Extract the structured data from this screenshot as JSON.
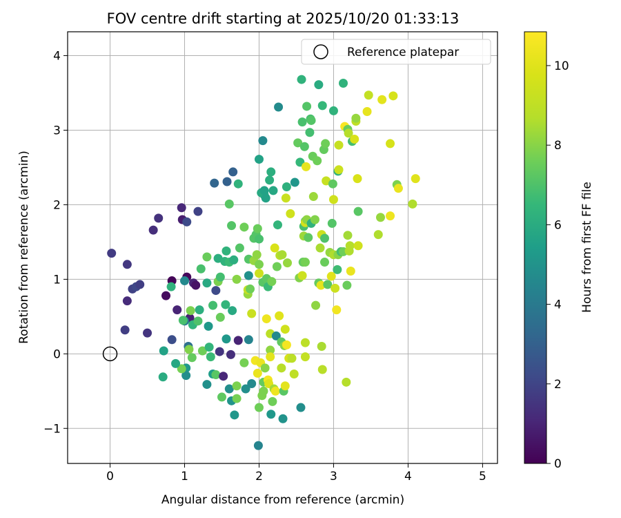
{
  "chart_data": {
    "type": "scatter",
    "title": "FOV centre drift starting at 2025/10/20 01:33:13",
    "xlabel": "Angular distance from reference (arcmin)",
    "ylabel": "Rotation from reference (arcmin)",
    "xlim": [
      -0.57,
      5.2
    ],
    "ylim": [
      -1.47,
      4.32
    ],
    "xticks": [
      0,
      1,
      2,
      3,
      4,
      5
    ],
    "yticks": [
      -1,
      0,
      1,
      2,
      3,
      4
    ],
    "xtick_labels": [
      "0",
      "1",
      "2",
      "3",
      "4",
      "5"
    ],
    "ytick_labels": [
      "−1",
      "0",
      "1",
      "2",
      "3",
      "4"
    ],
    "grid": true,
    "legend": {
      "position": "top-right",
      "label": "Reference platepar"
    },
    "reference_point": {
      "x": 0,
      "y": 0
    },
    "colorbar": {
      "label": "Hours from first FF file",
      "colormap": "viridis",
      "range": [
        0,
        10.85
      ],
      "ticks": [
        0,
        2,
        4,
        6,
        8,
        10
      ],
      "tick_labels": [
        "0",
        "2",
        "4",
        "6",
        "8",
        "10"
      ]
    },
    "points": [
      {
        "x": 0.02,
        "y": 1.35,
        "h": 1.7
      },
      {
        "x": 0.23,
        "y": 1.2,
        "h": 1.6
      },
      {
        "x": 0.2,
        "y": 0.32,
        "h": 1.8
      },
      {
        "x": 0.23,
        "y": 0.71,
        "h": 1.2
      },
      {
        "x": 0.3,
        "y": 0.87,
        "h": 1.9
      },
      {
        "x": 0.35,
        "y": 0.9,
        "h": 2.1
      },
      {
        "x": 0.4,
        "y": 0.93,
        "h": 1.8
      },
      {
        "x": 0.5,
        "y": 0.28,
        "h": 1.5
      },
      {
        "x": 0.58,
        "y": 1.66,
        "h": 1.3
      },
      {
        "x": 0.65,
        "y": 1.82,
        "h": 1.4
      },
      {
        "x": 0.75,
        "y": 0.78,
        "h": 0.3
      },
      {
        "x": 0.83,
        "y": 0.98,
        "h": 0.1
      },
      {
        "x": 0.83,
        "y": 0.19,
        "h": 2.3
      },
      {
        "x": 0.9,
        "y": 0.59,
        "h": 1.0
      },
      {
        "x": 0.96,
        "y": 1.96,
        "h": 1.1
      },
      {
        "x": 0.97,
        "y": 1.8,
        "h": 0.8
      },
      {
        "x": 1.03,
        "y": 1.77,
        "h": 2.2
      },
      {
        "x": 1.03,
        "y": 1.03,
        "h": 0.2
      },
      {
        "x": 1.07,
        "y": 0.48,
        "h": 0.9
      },
      {
        "x": 1.12,
        "y": 0.95,
        "h": 1.0
      },
      {
        "x": 1.15,
        "y": 0.92,
        "h": 0.5
      },
      {
        "x": 1.18,
        "y": 1.91,
        "h": 1.9
      },
      {
        "x": 1.0,
        "y": 0.98,
        "h": 4.6
      },
      {
        "x": 1.0,
        "y": 0.44,
        "h": 4.0
      },
      {
        "x": 1.05,
        "y": 0.1,
        "h": 3.6
      },
      {
        "x": 1.02,
        "y": -0.19,
        "h": 5.2
      },
      {
        "x": 1.02,
        "y": -0.29,
        "h": 4.8
      },
      {
        "x": 0.96,
        "y": -0.2,
        "h": 7.7
      },
      {
        "x": 0.88,
        "y": -0.13,
        "h": 5.8
      },
      {
        "x": 0.72,
        "y": 0.04,
        "h": 5.6
      },
      {
        "x": 0.71,
        "y": -0.31,
        "h": 6.0
      },
      {
        "x": 0.82,
        "y": 0.9,
        "h": 6.3
      },
      {
        "x": 0.98,
        "y": 0.45,
        "h": 6.9
      },
      {
        "x": 1.08,
        "y": 0.58,
        "h": 7.8
      },
      {
        "x": 1.11,
        "y": 0.39,
        "h": 6.4
      },
      {
        "x": 1.06,
        "y": 0.06,
        "h": 7.9
      },
      {
        "x": 1.1,
        "y": -0.05,
        "h": 7.4
      },
      {
        "x": 1.18,
        "y": 0.44,
        "h": 7.0
      },
      {
        "x": 1.2,
        "y": 0.59,
        "h": 6.1
      },
      {
        "x": 1.24,
        "y": 0.04,
        "h": 7.6
      },
      {
        "x": 1.22,
        "y": 1.14,
        "h": 6.9
      },
      {
        "x": 1.3,
        "y": 1.3,
        "h": 7.5
      },
      {
        "x": 1.3,
        "y": 0.95,
        "h": 5.9
      },
      {
        "x": 1.32,
        "y": 0.37,
        "h": 5.2
      },
      {
        "x": 1.3,
        "y": -0.41,
        "h": 4.9
      },
      {
        "x": 1.33,
        "y": 0.09,
        "h": 6.4
      },
      {
        "x": 1.35,
        "y": -0.04,
        "h": 6.6
      },
      {
        "x": 1.38,
        "y": -0.27,
        "h": 5.4
      },
      {
        "x": 1.38,
        "y": 0.65,
        "h": 6.8
      },
      {
        "x": 1.42,
        "y": -0.28,
        "h": 7.2
      },
      {
        "x": 1.4,
        "y": 2.29,
        "h": 3.2
      },
      {
        "x": 1.42,
        "y": 0.85,
        "h": 2.2
      },
      {
        "x": 1.45,
        "y": 0.97,
        "h": 7.8
      },
      {
        "x": 1.45,
        "y": 1.28,
        "h": 6.1
      },
      {
        "x": 1.47,
        "y": 0.03,
        "h": 1.5
      },
      {
        "x": 1.48,
        "y": 0.49,
        "h": 7.5
      },
      {
        "x": 1.48,
        "y": 1.03,
        "h": 6.8
      },
      {
        "x": 1.5,
        "y": -0.58,
        "h": 7.3
      },
      {
        "x": 1.52,
        "y": -0.3,
        "h": 1.1
      },
      {
        "x": 1.54,
        "y": 1.24,
        "h": 6.3
      },
      {
        "x": 1.55,
        "y": 0.66,
        "h": 6.4
      },
      {
        "x": 1.56,
        "y": 1.38,
        "h": 6.3
      },
      {
        "x": 1.56,
        "y": 0.2,
        "h": 5.2
      },
      {
        "x": 1.57,
        "y": 2.31,
        "h": 3.0
      },
      {
        "x": 1.6,
        "y": -0.47,
        "h": 4.8
      },
      {
        "x": 1.6,
        "y": 1.23,
        "h": 6.6
      },
      {
        "x": 1.6,
        "y": 2.01,
        "h": 7.2
      },
      {
        "x": 1.62,
        "y": -0.01,
        "h": 1.3
      },
      {
        "x": 1.63,
        "y": -0.63,
        "h": 5.0
      },
      {
        "x": 1.63,
        "y": 1.72,
        "h": 7.1
      },
      {
        "x": 1.64,
        "y": 0.58,
        "h": 5.9
      },
      {
        "x": 1.65,
        "y": 2.44,
        "h": 3.0
      },
      {
        "x": 1.66,
        "y": 1.26,
        "h": 6.1
      },
      {
        "x": 1.67,
        "y": -0.82,
        "h": 5.1
      },
      {
        "x": 1.7,
        "y": -0.43,
        "h": 7.8
      },
      {
        "x": 1.7,
        "y": -0.6,
        "h": 7.7
      },
      {
        "x": 1.7,
        "y": 1.0,
        "h": 8.0
      },
      {
        "x": 1.72,
        "y": 2.28,
        "h": 6.3
      },
      {
        "x": 1.72,
        "y": 0.18,
        "h": 1.0
      },
      {
        "x": 1.74,
        "y": 1.42,
        "h": 7.1
      },
      {
        "x": 1.8,
        "y": -0.12,
        "h": 7.7
      },
      {
        "x": 1.8,
        "y": 1.7,
        "h": 7.6
      },
      {
        "x": 1.82,
        "y": -0.47,
        "h": 4.8
      },
      {
        "x": 1.85,
        "y": 0.8,
        "h": 8.2
      },
      {
        "x": 1.85,
        "y": 0.86,
        "h": 9.1
      },
      {
        "x": 1.86,
        "y": 1.05,
        "h": 4.9
      },
      {
        "x": 1.86,
        "y": 0.19,
        "h": 4.4
      },
      {
        "x": 1.86,
        "y": 1.27,
        "h": 7.1
      },
      {
        "x": 1.88,
        "y": 0.87,
        "h": 7.6
      },
      {
        "x": 1.9,
        "y": -0.4,
        "h": 4.6
      },
      {
        "x": 1.9,
        "y": 0.54,
        "h": 9.3
      },
      {
        "x": 1.93,
        "y": 1.25,
        "h": 8.2
      },
      {
        "x": 1.93,
        "y": 1.55,
        "h": 7.1
      },
      {
        "x": 1.95,
        "y": -0.09,
        "h": 10.5
      },
      {
        "x": 1.96,
        "y": 1.6,
        "h": 7.1
      },
      {
        "x": 1.97,
        "y": 1.33,
        "h": 8.1
      },
      {
        "x": 1.98,
        "y": 1.68,
        "h": 7.5
      },
      {
        "x": 1.98,
        "y": -0.26,
        "h": 10.3
      },
      {
        "x": 1.99,
        "y": -1.23,
        "h": 4.4
      },
      {
        "x": 2.0,
        "y": 1.54,
        "h": 6.9
      },
      {
        "x": 2.0,
        "y": 2.61,
        "h": 5.6
      },
      {
        "x": 2.0,
        "y": 1.2,
        "h": 7.8
      },
      {
        "x": 2.0,
        "y": 1.08,
        "h": 9.4
      },
      {
        "x": 2.0,
        "y": -0.72,
        "h": 7.6
      },
      {
        "x": 2.02,
        "y": -0.12,
        "h": 10.3
      },
      {
        "x": 2.03,
        "y": 2.16,
        "h": 5.9
      },
      {
        "x": 2.04,
        "y": -0.56,
        "h": 7.8
      },
      {
        "x": 2.05,
        "y": 0.96,
        "h": 7.2
      },
      {
        "x": 2.05,
        "y": 2.86,
        "h": 4.6
      },
      {
        "x": 2.06,
        "y": -0.38,
        "h": 7.4
      },
      {
        "x": 2.06,
        "y": -0.5,
        "h": 7.8
      },
      {
        "x": 2.07,
        "y": 2.13,
        "h": 5.9
      },
      {
        "x": 2.07,
        "y": 2.19,
        "h": 5.6
      },
      {
        "x": 2.08,
        "y": -0.19,
        "h": 8.0
      },
      {
        "x": 2.09,
        "y": 2.09,
        "h": 5.6
      },
      {
        "x": 2.1,
        "y": 1.01,
        "h": 7.3
      },
      {
        "x": 2.1,
        "y": 0.47,
        "h": 10.4
      },
      {
        "x": 2.12,
        "y": -0.35,
        "h": 10.6
      },
      {
        "x": 2.12,
        "y": 0.9,
        "h": 6.6
      },
      {
        "x": 2.13,
        "y": -0.4,
        "h": 9.9
      },
      {
        "x": 2.14,
        "y": 2.33,
        "h": 6.1
      },
      {
        "x": 2.15,
        "y": 0.27,
        "h": 8.9
      },
      {
        "x": 2.15,
        "y": 0.05,
        "h": 8.1
      },
      {
        "x": 2.15,
        "y": -0.04,
        "h": 10.1
      },
      {
        "x": 2.16,
        "y": -0.81,
        "h": 5.2
      },
      {
        "x": 2.16,
        "y": 2.44,
        "h": 6.1
      },
      {
        "x": 2.17,
        "y": 0.97,
        "h": 7.7
      },
      {
        "x": 2.18,
        "y": -0.64,
        "h": 7.6
      },
      {
        "x": 2.19,
        "y": 2.19,
        "h": 5.8
      },
      {
        "x": 2.2,
        "y": -0.47,
        "h": 8.4
      },
      {
        "x": 2.21,
        "y": 1.42,
        "h": 9.8
      },
      {
        "x": 2.22,
        "y": -0.5,
        "h": 10.4
      },
      {
        "x": 2.23,
        "y": 0.24,
        "h": 4.6
      },
      {
        "x": 2.24,
        "y": 1.17,
        "h": 7.6
      },
      {
        "x": 2.25,
        "y": 1.73,
        "h": 6.4
      },
      {
        "x": 2.26,
        "y": 3.31,
        "h": 4.7
      },
      {
        "x": 2.27,
        "y": 0.51,
        "h": 10.0
      },
      {
        "x": 2.28,
        "y": 1.32,
        "h": 8.7
      },
      {
        "x": 2.3,
        "y": 0.16,
        "h": 7.3
      },
      {
        "x": 2.3,
        "y": -0.19,
        "h": 8.8
      },
      {
        "x": 2.31,
        "y": 1.33,
        "h": 8.5
      },
      {
        "x": 2.32,
        "y": -0.87,
        "h": 5.0
      },
      {
        "x": 2.33,
        "y": -0.5,
        "h": 7.2
      },
      {
        "x": 2.34,
        "y": 0.11,
        "h": 8.0
      },
      {
        "x": 2.35,
        "y": -0.43,
        "h": 10.1
      },
      {
        "x": 2.35,
        "y": 0.33,
        "h": 9.5
      },
      {
        "x": 2.36,
        "y": 2.09,
        "h": 9.3
      },
      {
        "x": 2.37,
        "y": 2.24,
        "h": 6.2
      },
      {
        "x": 2.37,
        "y": 0.12,
        "h": 10.6
      },
      {
        "x": 2.38,
        "y": 1.22,
        "h": 8.2
      },
      {
        "x": 2.4,
        "y": -0.06,
        "h": 9.7
      },
      {
        "x": 2.42,
        "y": 1.88,
        "h": 9.5
      },
      {
        "x": 2.44,
        "y": -0.06,
        "h": 8.9
      },
      {
        "x": 2.47,
        "y": -0.27,
        "h": 9.0
      },
      {
        "x": 2.48,
        "y": 2.3,
        "h": 5.1
      },
      {
        "x": 2.52,
        "y": 2.83,
        "h": 7.4
      },
      {
        "x": 2.54,
        "y": 1.02,
        "h": 7.9
      },
      {
        "x": 2.55,
        "y": 2.57,
        "h": 6.5
      },
      {
        "x": 2.56,
        "y": -0.72,
        "h": 4.8
      },
      {
        "x": 2.57,
        "y": 3.68,
        "h": 6.3
      },
      {
        "x": 2.58,
        "y": 1.05,
        "h": 9.4
      },
      {
        "x": 2.58,
        "y": 3.11,
        "h": 6.9
      },
      {
        "x": 2.59,
        "y": 1.23,
        "h": 7.4
      },
      {
        "x": 2.6,
        "y": 1.71,
        "h": 6.9
      },
      {
        "x": 2.6,
        "y": 1.58,
        "h": 8.3
      },
      {
        "x": 2.61,
        "y": 2.78,
        "h": 7.1
      },
      {
        "x": 2.62,
        "y": 1.78,
        "h": 7.2
      },
      {
        "x": 2.62,
        "y": 1.23,
        "h": 7.7
      },
      {
        "x": 2.62,
        "y": 1.76,
        "h": 9.6
      },
      {
        "x": 2.62,
        "y": 0.15,
        "h": 8.9
      },
      {
        "x": 2.62,
        "y": -0.04,
        "h": 9.1
      },
      {
        "x": 2.63,
        "y": 2.51,
        "h": 10.2
      },
      {
        "x": 2.64,
        "y": 1.8,
        "h": 8.1
      },
      {
        "x": 2.64,
        "y": 3.32,
        "h": 7.1
      },
      {
        "x": 2.66,
        "y": 1.56,
        "h": 7.3
      },
      {
        "x": 2.68,
        "y": 2.97,
        "h": 6.8
      },
      {
        "x": 2.69,
        "y": 3.15,
        "h": 6.9
      },
      {
        "x": 2.7,
        "y": 3.13,
        "h": 7.1
      },
      {
        "x": 2.7,
        "y": 1.75,
        "h": 6.3
      },
      {
        "x": 2.72,
        "y": 2.65,
        "h": 7.5
      },
      {
        "x": 2.73,
        "y": 2.11,
        "h": 8.3
      },
      {
        "x": 2.75,
        "y": 1.8,
        "h": 7.9
      },
      {
        "x": 2.76,
        "y": 0.65,
        "h": 8.1
      },
      {
        "x": 2.78,
        "y": 2.59,
        "h": 7.6
      },
      {
        "x": 2.8,
        "y": 3.61,
        "h": 6.0
      },
      {
        "x": 2.8,
        "y": 0.95,
        "h": 7.4
      },
      {
        "x": 2.82,
        "y": 1.42,
        "h": 8.5
      },
      {
        "x": 2.83,
        "y": 0.92,
        "h": 10.1
      },
      {
        "x": 2.84,
        "y": 1.6,
        "h": 9.4
      },
      {
        "x": 2.84,
        "y": 0.1,
        "h": 8.5
      },
      {
        "x": 2.85,
        "y": -0.21,
        "h": 8.8
      },
      {
        "x": 2.85,
        "y": 3.33,
        "h": 6.5
      },
      {
        "x": 2.87,
        "y": 2.74,
        "h": 7.4
      },
      {
        "x": 2.88,
        "y": 1.55,
        "h": 7.0
      },
      {
        "x": 2.88,
        "y": 1.23,
        "h": 7.5
      },
      {
        "x": 2.89,
        "y": 2.82,
        "h": 7.6
      },
      {
        "x": 2.9,
        "y": 2.32,
        "h": 9.2
      },
      {
        "x": 2.92,
        "y": 0.93,
        "h": 7.2
      },
      {
        "x": 2.95,
        "y": 1.36,
        "h": 8.2
      },
      {
        "x": 2.97,
        "y": 1.04,
        "h": 10.0
      },
      {
        "x": 2.98,
        "y": 1.75,
        "h": 7.1
      },
      {
        "x": 2.99,
        "y": 2.28,
        "h": 7.3
      },
      {
        "x": 3.0,
        "y": 1.33,
        "h": 8.6
      },
      {
        "x": 3.0,
        "y": 3.26,
        "h": 6.3
      },
      {
        "x": 3.0,
        "y": 2.07,
        "h": 9.5
      },
      {
        "x": 3.02,
        "y": 0.88,
        "h": 9.4
      },
      {
        "x": 3.04,
        "y": 0.59,
        "h": 10.5
      },
      {
        "x": 3.05,
        "y": 1.13,
        "h": 6.7
      },
      {
        "x": 3.06,
        "y": 1.33,
        "h": 8.0
      },
      {
        "x": 3.06,
        "y": 2.45,
        "h": 6.3
      },
      {
        "x": 3.07,
        "y": 2.47,
        "h": 9.4
      },
      {
        "x": 3.07,
        "y": 2.8,
        "h": 9.2
      },
      {
        "x": 3.1,
        "y": 1.37,
        "h": 6.8
      },
      {
        "x": 3.13,
        "y": 3.63,
        "h": 6.3
      },
      {
        "x": 3.13,
        "y": 1.37,
        "h": 7.6
      },
      {
        "x": 3.15,
        "y": 3.05,
        "h": 10.7
      },
      {
        "x": 3.17,
        "y": -0.38,
        "h": 8.7
      },
      {
        "x": 3.18,
        "y": 0.92,
        "h": 7.5
      },
      {
        "x": 3.19,
        "y": 1.59,
        "h": 8.4
      },
      {
        "x": 3.19,
        "y": 3.01,
        "h": 7.5
      },
      {
        "x": 3.2,
        "y": 2.96,
        "h": 8.7
      },
      {
        "x": 3.21,
        "y": 1.38,
        "h": 8.6
      },
      {
        "x": 3.22,
        "y": 1.45,
        "h": 8.7
      },
      {
        "x": 3.23,
        "y": 1.11,
        "h": 10.3
      },
      {
        "x": 3.25,
        "y": 2.85,
        "h": 6.8
      },
      {
        "x": 3.28,
        "y": 2.88,
        "h": 9.8
      },
      {
        "x": 3.3,
        "y": 3.12,
        "h": 9.0
      },
      {
        "x": 3.3,
        "y": 3.16,
        "h": 8.2
      },
      {
        "x": 3.32,
        "y": 2.35,
        "h": 9.8
      },
      {
        "x": 3.33,
        "y": 1.91,
        "h": 7.2
      },
      {
        "x": 3.33,
        "y": 1.45,
        "h": 9.5
      },
      {
        "x": 3.45,
        "y": 3.25,
        "h": 10.2
      },
      {
        "x": 3.47,
        "y": 3.47,
        "h": 9.1
      },
      {
        "x": 3.6,
        "y": 1.6,
        "h": 8.6
      },
      {
        "x": 3.63,
        "y": 1.83,
        "h": 8.2
      },
      {
        "x": 3.65,
        "y": 3.41,
        "h": 10.1
      },
      {
        "x": 3.76,
        "y": 1.85,
        "h": 10.4
      },
      {
        "x": 3.76,
        "y": 2.82,
        "h": 9.7
      },
      {
        "x": 3.8,
        "y": 3.46,
        "h": 9.7
      },
      {
        "x": 3.85,
        "y": 2.27,
        "h": 7.8
      },
      {
        "x": 3.87,
        "y": 2.22,
        "h": 10.3
      },
      {
        "x": 4.06,
        "y": 2.01,
        "h": 8.6
      },
      {
        "x": 4.1,
        "y": 2.35,
        "h": 10.0
      }
    ]
  }
}
